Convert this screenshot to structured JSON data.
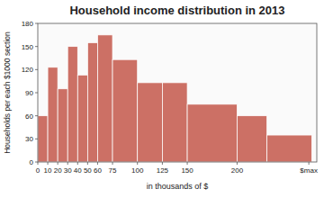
{
  "chart_data": {
    "type": "histogram",
    "title": "Household income distribution in 2013",
    "x_label": "in thousands of $",
    "y_label": "Households per each $1000 section",
    "bins": [
      0,
      10,
      20,
      30,
      40,
      50,
      60,
      75,
      100,
      125,
      150,
      200,
      230,
      275
    ],
    "values": [
      60,
      123,
      95,
      150,
      113,
      155,
      165,
      133,
      103,
      103,
      75,
      60,
      35
    ],
    "color": "#CC7065",
    "xlim": [
      0,
      280
    ],
    "xticks": [
      0,
      10,
      20,
      30,
      40,
      50,
      60,
      75,
      100,
      125,
      150,
      200,
      {
        "value": 272,
        "label": "$max"
      }
    ],
    "ylim": [
      0,
      180
    ],
    "yticks": [
      0,
      30,
      60,
      90,
      120,
      150,
      180
    ],
    "grid": false
  }
}
